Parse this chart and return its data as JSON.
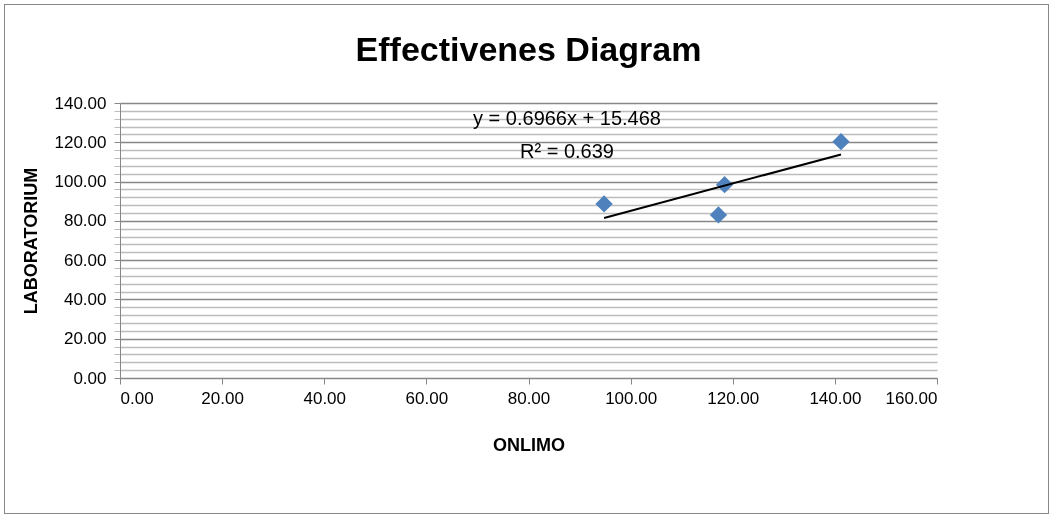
{
  "chart_data": {
    "type": "scatter",
    "title": "Effectivenes Diagram",
    "xlabel": "ONLIMO",
    "ylabel": "LABORATORIUM",
    "annotations": [
      "y = 0.6966x + 15.468",
      "R² = 0.639"
    ],
    "series": [
      {
        "type": "scatter",
        "marker": "diamond",
        "color": "#4f81bd",
        "x": [
          94.8,
          118.4,
          117.2,
          141.2
        ],
        "values": [
          88.6,
          98.4,
          83.0,
          120.3
        ]
      },
      {
        "type": "line",
        "marker": "none",
        "color": "#000000",
        "x": [
          94.8,
          141.2
        ],
        "values": [
          81.5,
          113.8
        ]
      }
    ],
    "xlim": [
      0,
      160
    ],
    "xticks": [
      {
        "value": 0,
        "label": "0.00"
      },
      {
        "value": 20,
        "label": "20.00"
      },
      {
        "value": 40,
        "label": "40.00"
      },
      {
        "value": 60,
        "label": "60.00"
      },
      {
        "value": 80,
        "label": "80.00"
      },
      {
        "value": 100,
        "label": "100.00"
      },
      {
        "value": 120,
        "label": "120.00"
      },
      {
        "value": 140,
        "label": "140.00"
      },
      {
        "value": 160,
        "label": "160.00"
      }
    ],
    "ylim": [
      0,
      140
    ],
    "yticks": [
      {
        "value": 0,
        "label": "0.00"
      },
      {
        "value": 4,
        "label": null
      },
      {
        "value": 8,
        "label": null
      },
      {
        "value": 12,
        "label": null
      },
      {
        "value": 16,
        "label": null
      },
      {
        "value": 20,
        "label": "20.00"
      },
      {
        "value": 24,
        "label": null
      },
      {
        "value": 28,
        "label": null
      },
      {
        "value": 32,
        "label": null
      },
      {
        "value": 36,
        "label": null
      },
      {
        "value": 40,
        "label": "40.00"
      },
      {
        "value": 44,
        "label": null
      },
      {
        "value": 48,
        "label": null
      },
      {
        "value": 52,
        "label": null
      },
      {
        "value": 56,
        "label": null
      },
      {
        "value": 60,
        "label": "60.00"
      },
      {
        "value": 64,
        "label": null
      },
      {
        "value": 68,
        "label": null
      },
      {
        "value": 72,
        "label": null
      },
      {
        "value": 76,
        "label": null
      },
      {
        "value": 80,
        "label": "80.00"
      },
      {
        "value": 84,
        "label": null
      },
      {
        "value": 88,
        "label": null
      },
      {
        "value": 92,
        "label": null
      },
      {
        "value": 96,
        "label": null
      },
      {
        "value": 100,
        "label": "100.00"
      },
      {
        "value": 104,
        "label": null
      },
      {
        "value": 108,
        "label": null
      },
      {
        "value": 112,
        "label": null
      },
      {
        "value": 116,
        "label": null
      },
      {
        "value": 120,
        "label": "120.00"
      },
      {
        "value": 124,
        "label": null
      },
      {
        "value": 128,
        "label": null
      },
      {
        "value": 132,
        "label": null
      },
      {
        "value": 136,
        "label": null
      },
      {
        "value": 140,
        "label": "140.00"
      }
    ],
    "grid": "y",
    "legend": false
  }
}
